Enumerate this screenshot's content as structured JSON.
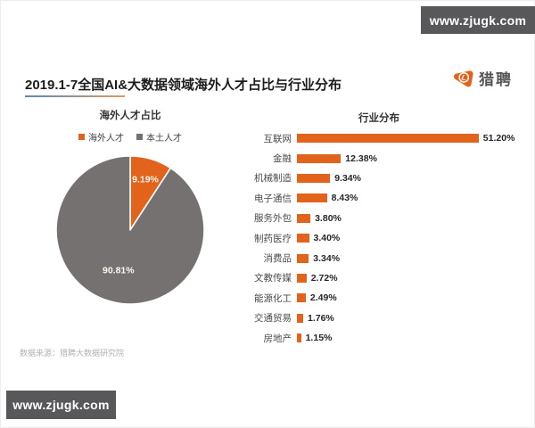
{
  "watermark": {
    "text": "www.zjugk.com"
  },
  "header": {
    "title": "2019.1-7全国AI&大数据领域海外人才占比与行业分布",
    "logo_text": "猎聘",
    "logo_monogram": "L"
  },
  "source_note": "数据来源：猎聘大数据研究院",
  "colors": {
    "accent_orange": "#E2641C",
    "pie_gray": "#767171",
    "watermark_bg": "#58585A",
    "title_underline_left": "#5B89B4",
    "title_underline_right": "#DD9A66"
  },
  "chart_data": [
    {
      "type": "pie",
      "title": "海外人才占比",
      "legend": [
        "海外人才",
        "本土人才"
      ],
      "legend_position": "top",
      "labels": [
        "海外人才",
        "本土人才"
      ],
      "values": [
        9.19,
        90.81
      ],
      "data_labels": [
        "9.19%",
        "90.81%"
      ],
      "colors": [
        "#E2641C",
        "#767171"
      ],
      "start_angle_deg": -90,
      "direction": "clockwise"
    },
    {
      "type": "bar",
      "title": "行业分布",
      "orientation": "horizontal",
      "bar_color": "#E2641C",
      "grid": false,
      "xlim": [
        0,
        55
      ],
      "categories": [
        "互联网",
        "金融",
        "机械制造",
        "电子通信",
        "服务外包",
        "制药医疗",
        "消费品",
        "文教传媒",
        "能源化工",
        "交通贸易",
        "房地产"
      ],
      "values": [
        51.2,
        12.38,
        9.34,
        8.43,
        3.8,
        3.4,
        3.34,
        2.72,
        2.49,
        1.76,
        1.15
      ],
      "data_labels": [
        "51.20%",
        "12.38%",
        "9.34%",
        "8.43%",
        "3.80%",
        "3.40%",
        "3.34%",
        "2.72%",
        "2.49%",
        "1.76%",
        "1.15%"
      ]
    }
  ]
}
